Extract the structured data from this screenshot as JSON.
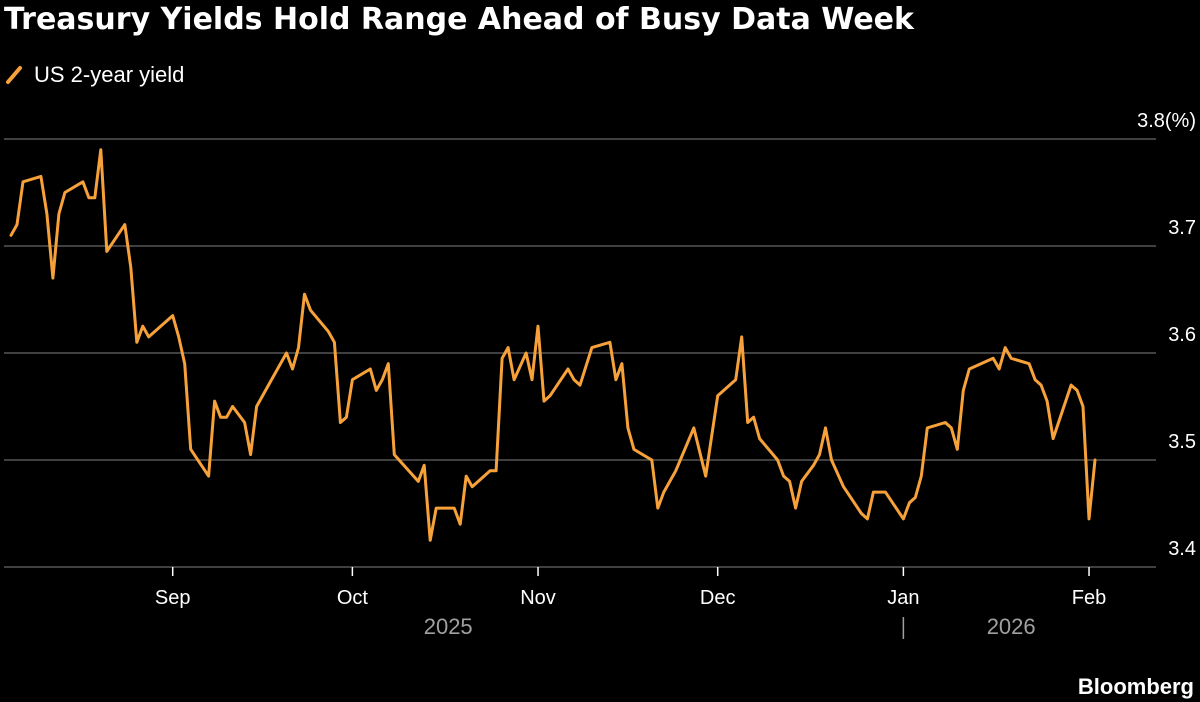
{
  "header": {
    "title": "Treasury Yields Hold Range Ahead of Busy Data Week"
  },
  "footer": {
    "source": "Bloomberg"
  },
  "colors": {
    "background": "#000000",
    "series": "#f7a13a",
    "grid": "#555555",
    "text": "#ffffff",
    "muted": "#a0a0a0"
  },
  "chart_data": {
    "type": "line",
    "title": "Treasury Yields Hold Range Ahead of Busy Data Week",
    "xlabel": "",
    "ylabel": "%",
    "ylim": [
      3.4,
      3.8
    ],
    "xlim": [
      0,
      183
    ],
    "y_ticks": [
      {
        "value": 3.4,
        "label": "3.4"
      },
      {
        "value": 3.5,
        "label": "3.5"
      },
      {
        "value": 3.6,
        "label": "3.6"
      },
      {
        "value": 3.7,
        "label": "3.7"
      },
      {
        "value": 3.8,
        "label": "3.8(%)"
      }
    ],
    "x_ticks": [
      {
        "day": 27,
        "label": "Sep"
      },
      {
        "day": 57,
        "label": "Oct"
      },
      {
        "day": 88,
        "label": "Nov"
      },
      {
        "day": 118,
        "label": "Dec"
      },
      {
        "day": 149,
        "label": "Jan"
      },
      {
        "day": 180,
        "label": "Feb"
      }
    ],
    "year_labels": [
      {
        "day": 73,
        "label": "2025"
      },
      {
        "day": 167,
        "label": "2026"
      }
    ],
    "year_divider_day": 149,
    "grid": true,
    "legend": {
      "position": "top-left"
    },
    "series": [
      {
        "name": "US 2-year yield",
        "points": [
          [
            0,
            3.71
          ],
          [
            1,
            3.72
          ],
          [
            2,
            3.76
          ],
          [
            5,
            3.765
          ],
          [
            6,
            3.73
          ],
          [
            7,
            3.67
          ],
          [
            8,
            3.73
          ],
          [
            9,
            3.75
          ],
          [
            12,
            3.76
          ],
          [
            13,
            3.745
          ],
          [
            14,
            3.745
          ],
          [
            15,
            3.79
          ],
          [
            16,
            3.695
          ],
          [
            19,
            3.72
          ],
          [
            20,
            3.68
          ],
          [
            21,
            3.61
          ],
          [
            22,
            3.625
          ],
          [
            23,
            3.615
          ],
          [
            27,
            3.635
          ],
          [
            28,
            3.615
          ],
          [
            29,
            3.59
          ],
          [
            30,
            3.51
          ],
          [
            33,
            3.485
          ],
          [
            34,
            3.555
          ],
          [
            35,
            3.54
          ],
          [
            36,
            3.54
          ],
          [
            37,
            3.55
          ],
          [
            39,
            3.535
          ],
          [
            40,
            3.505
          ],
          [
            41,
            3.55
          ],
          [
            43,
            3.57
          ],
          [
            46,
            3.6
          ],
          [
            47,
            3.585
          ],
          [
            48,
            3.605
          ],
          [
            49,
            3.655
          ],
          [
            50,
            3.64
          ],
          [
            53,
            3.62
          ],
          [
            54,
            3.61
          ],
          [
            55,
            3.535
          ],
          [
            56,
            3.54
          ],
          [
            57,
            3.575
          ],
          [
            60,
            3.585
          ],
          [
            61,
            3.565
          ],
          [
            62,
            3.575
          ],
          [
            63,
            3.59
          ],
          [
            64,
            3.505
          ],
          [
            68,
            3.48
          ],
          [
            69,
            3.495
          ],
          [
            70,
            3.425
          ],
          [
            71,
            3.455
          ],
          [
            74,
            3.455
          ],
          [
            75,
            3.44
          ],
          [
            76,
            3.485
          ],
          [
            77,
            3.475
          ],
          [
            80,
            3.49
          ],
          [
            81,
            3.49
          ],
          [
            82,
            3.595
          ],
          [
            83,
            3.605
          ],
          [
            84,
            3.575
          ],
          [
            86,
            3.6
          ],
          [
            87,
            3.575
          ],
          [
            88,
            3.625
          ],
          [
            89,
            3.555
          ],
          [
            90,
            3.56
          ],
          [
            93,
            3.585
          ],
          [
            94,
            3.575
          ],
          [
            95,
            3.57
          ],
          [
            97,
            3.605
          ],
          [
            100,
            3.61
          ],
          [
            101,
            3.575
          ],
          [
            102,
            3.59
          ],
          [
            103,
            3.53
          ],
          [
            104,
            3.51
          ],
          [
            107,
            3.5
          ],
          [
            108,
            3.455
          ],
          [
            109,
            3.47
          ],
          [
            111,
            3.49
          ],
          [
            114,
            3.53
          ],
          [
            116,
            3.485
          ],
          [
            118,
            3.56
          ],
          [
            121,
            3.575
          ],
          [
            122,
            3.615
          ],
          [
            123,
            3.535
          ],
          [
            124,
            3.54
          ],
          [
            125,
            3.52
          ],
          [
            128,
            3.5
          ],
          [
            129,
            3.485
          ],
          [
            130,
            3.48
          ],
          [
            131,
            3.455
          ],
          [
            132,
            3.48
          ],
          [
            134,
            3.495
          ],
          [
            135,
            3.505
          ],
          [
            136,
            3.53
          ],
          [
            137,
            3.5
          ],
          [
            139,
            3.475
          ],
          [
            142,
            3.45
          ],
          [
            143,
            3.445
          ],
          [
            144,
            3.47
          ],
          [
            146,
            3.47
          ],
          [
            149,
            3.445
          ],
          [
            150,
            3.46
          ],
          [
            151,
            3.465
          ],
          [
            152,
            3.485
          ],
          [
            153,
            3.53
          ],
          [
            156,
            3.535
          ],
          [
            157,
            3.53
          ],
          [
            158,
            3.51
          ],
          [
            159,
            3.565
          ],
          [
            160,
            3.585
          ],
          [
            164,
            3.595
          ],
          [
            165,
            3.585
          ],
          [
            166,
            3.605
          ],
          [
            167,
            3.595
          ],
          [
            170,
            3.59
          ],
          [
            171,
            3.575
          ],
          [
            172,
            3.57
          ],
          [
            173,
            3.555
          ],
          [
            174,
            3.52
          ],
          [
            177,
            3.57
          ],
          [
            178,
            3.565
          ],
          [
            179,
            3.55
          ],
          [
            180,
            3.445
          ],
          [
            181,
            3.5
          ]
        ]
      }
    ]
  }
}
